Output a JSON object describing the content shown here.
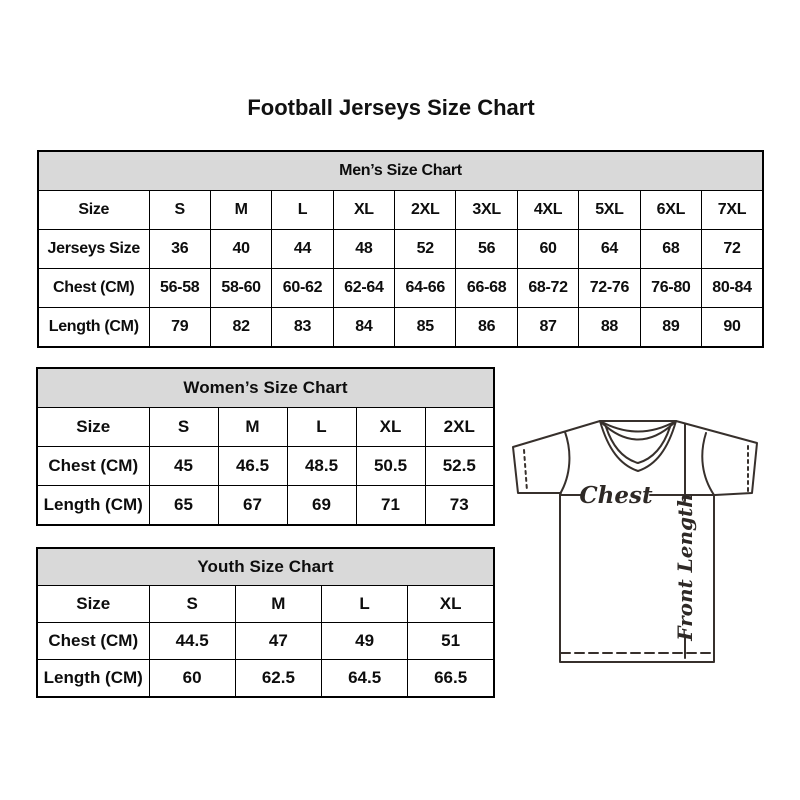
{
  "page": {
    "title": "Football Jerseys Size Chart"
  },
  "tables": {
    "men": {
      "header": "Men’s Size Chart",
      "rows": [
        {
          "label": "Size",
          "values": [
            "S",
            "M",
            "L",
            "XL",
            "2XL",
            "3XL",
            "4XL",
            "5XL",
            "6XL",
            "7XL"
          ]
        },
        {
          "label": "Jerseys Size",
          "values": [
            "36",
            "40",
            "44",
            "48",
            "52",
            "56",
            "60",
            "64",
            "68",
            "72"
          ]
        },
        {
          "label": "Chest (CM)",
          "values": [
            "56-58",
            "58-60",
            "60-62",
            "62-64",
            "64-66",
            "66-68",
            "68-72",
            "72-76",
            "76-80",
            "80-84"
          ]
        },
        {
          "label": "Length (CM)",
          "values": [
            "79",
            "82",
            "83",
            "84",
            "85",
            "86",
            "87",
            "88",
            "89",
            "90"
          ]
        }
      ]
    },
    "women": {
      "header": "Women’s Size Chart",
      "rows": [
        {
          "label": "Size",
          "values": [
            "S",
            "M",
            "L",
            "XL",
            "2XL"
          ]
        },
        {
          "label": "Chest (CM)",
          "values": [
            "45",
            "46.5",
            "48.5",
            "50.5",
            "52.5"
          ]
        },
        {
          "label": "Length (CM)",
          "values": [
            "65",
            "67",
            "69",
            "71",
            "73"
          ]
        }
      ]
    },
    "youth": {
      "header": "Youth Size Chart",
      "rows": [
        {
          "label": "Size",
          "values": [
            "S",
            "M",
            "L",
            "XL"
          ]
        },
        {
          "label": "Chest (CM)",
          "values": [
            "44.5",
            "47",
            "49",
            "51"
          ]
        },
        {
          "label": "Length (CM)",
          "values": [
            "60",
            "62.5",
            "64.5",
            "66.5"
          ]
        }
      ]
    }
  },
  "diagram": {
    "chest_label": "Chest",
    "front_length_label": "Front Length"
  },
  "colors": {
    "header_fill": "#d9d9d9",
    "table_border": "#000000",
    "jersey_outline": "#37302c"
  }
}
